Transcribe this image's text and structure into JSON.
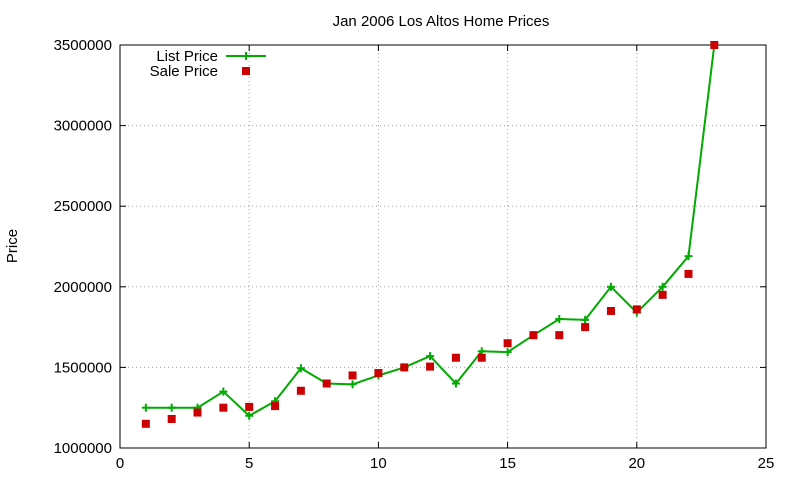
{
  "chart_data": {
    "type": "line",
    "title": "Jan 2006 Los Altos Home Prices",
    "xlabel": "",
    "ylabel": "Price",
    "xlim": [
      0,
      25
    ],
    "ylim": [
      1000000,
      3500000
    ],
    "xticks": [
      0,
      5,
      10,
      15,
      20,
      25
    ],
    "yticks": [
      1000000,
      1500000,
      2000000,
      2500000,
      3000000,
      3500000
    ],
    "grid": true,
    "legend_position": "top-left",
    "series": [
      {
        "name": "List Price",
        "style": "line+cross",
        "color": "#00aa00",
        "x": [
          1,
          2,
          3,
          4,
          5,
          6,
          7,
          8,
          9,
          10,
          11,
          12,
          13,
          14,
          15,
          16,
          17,
          18,
          19,
          20,
          21,
          22,
          23
        ],
        "y": [
          1250000,
          1250000,
          1250000,
          1350000,
          1200000,
          1290000,
          1495000,
          1400000,
          1395000,
          1450000,
          1500000,
          1570000,
          1400000,
          1600000,
          1595000,
          1700000,
          1800000,
          1795000,
          2000000,
          1840000,
          2000000,
          2190000,
          3500000
        ]
      },
      {
        "name": "Sale Price",
        "style": "square",
        "color": "#cc0000",
        "x": [
          1,
          2,
          3,
          4,
          5,
          6,
          7,
          8,
          9,
          10,
          11,
          12,
          13,
          14,
          15,
          16,
          17,
          18,
          19,
          20,
          21,
          22,
          23
        ],
        "y": [
          1150000,
          1180000,
          1220000,
          1250000,
          1255000,
          1260000,
          1355000,
          1400000,
          1450000,
          1465000,
          1500000,
          1505000,
          1560000,
          1560000,
          1650000,
          1700000,
          1700000,
          1750000,
          1850000,
          1860000,
          1950000,
          2080000,
          3500000
        ]
      }
    ]
  }
}
